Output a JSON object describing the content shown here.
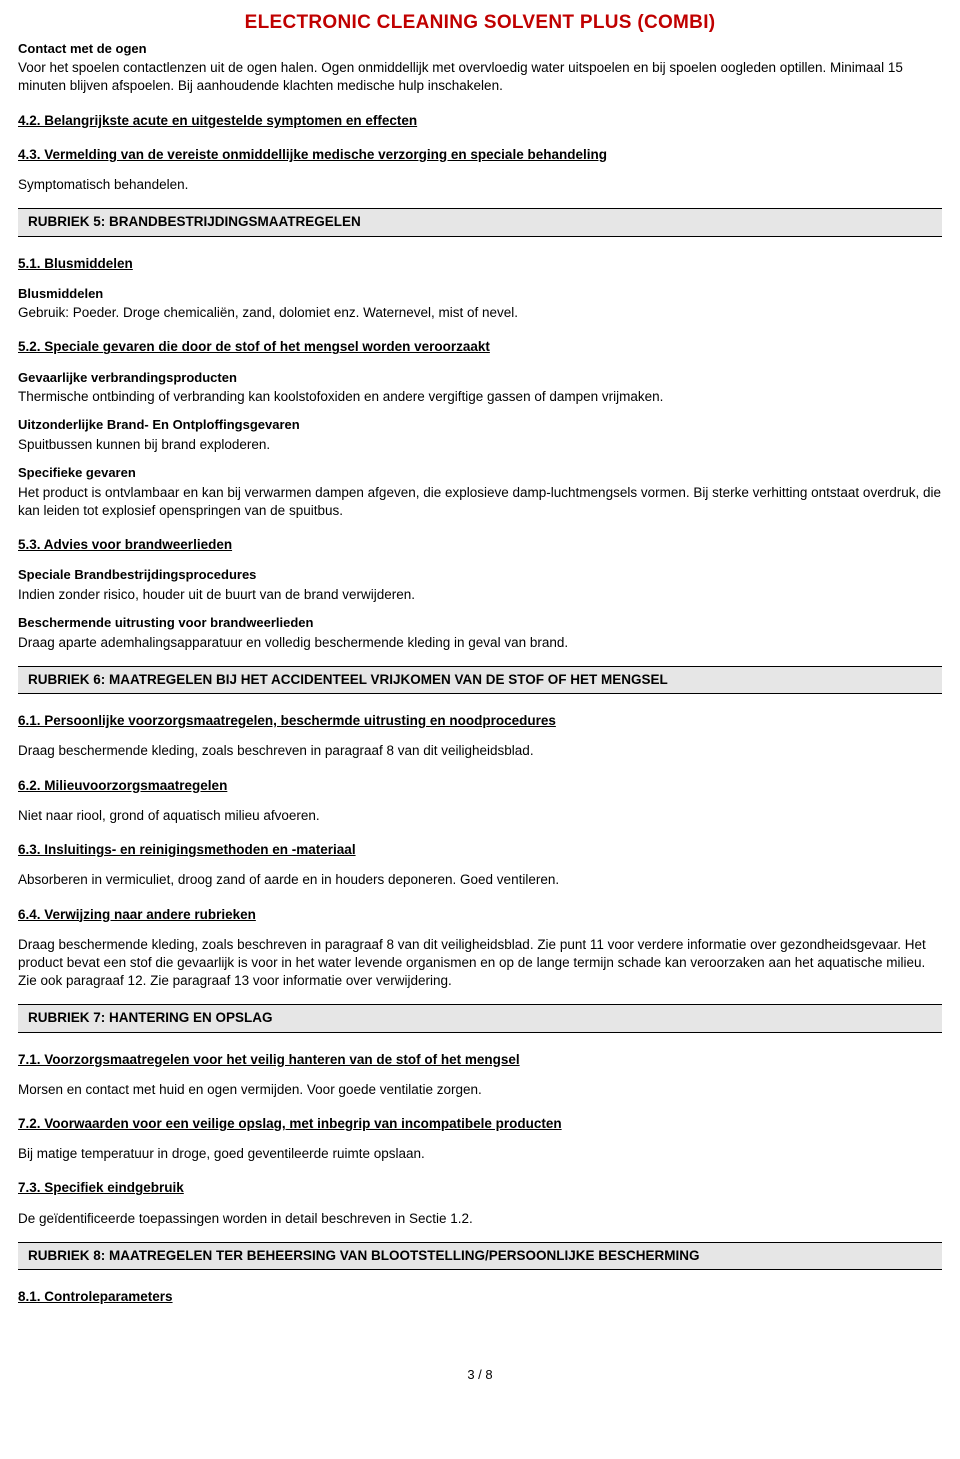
{
  "title": "ELECTRONIC CLEANING SOLVENT PLUS (COMBI)",
  "s_contact_heading": "Contact met de ogen",
  "s_contact_text": "Voor het spoelen contactlenzen uit de ogen halen. Ogen onmiddellijk met overvloedig water uitspoelen en bij spoelen oogleden optillen. Minimaal 15 minuten blijven afspoelen. Bij aanhoudende klachten medische hulp inschakelen.",
  "s4_2": "4.2. Belangrijkste acute en uitgestelde symptomen en effecten",
  "s4_3": "4.3. Vermelding van de vereiste onmiddellijke medische verzorging en speciale behandeling",
  "s4_3_text": "Symptomatisch behandelen.",
  "rubriek5": "RUBRIEK 5: BRANDBESTRIJDINGSMAATREGELEN",
  "s5_1": "5.1. Blusmiddelen",
  "s5_1_h": "Blusmiddelen",
  "s5_1_text": "Gebruik: Poeder. Droge chemicaliën,  zand,  dolomiet enz. Waternevel,  mist of nevel.",
  "s5_2": "5.2. Speciale gevaren die door de stof of het mengsel worden veroorzaakt",
  "s5_2_h1": "Gevaarlijke verbrandingsproducten",
  "s5_2_t1": "Thermische ontbinding of verbranding kan koolstofoxiden en andere vergiftige gassen of dampen vrijmaken.",
  "s5_2_h2": "Uitzonderlijke Brand- En Ontploffingsgevaren",
  "s5_2_t2": "Spuitbussen kunnen bij brand exploderen.",
  "s5_2_h3": "Specifieke gevaren",
  "s5_2_t3": "Het product is ontvlambaar en kan bij verwarmen dampen afgeven,  die explosieve damp-luchtmengsels vormen. Bij sterke verhitting ontstaat overdruk,  die kan leiden tot explosief openspringen van de spuitbus.",
  "s5_3": "5.3. Advies voor brandweerlieden",
  "s5_3_h1": "Speciale Brandbestrijdingsprocedures",
  "s5_3_t1": "Indien zonder risico,  houder uit de buurt van de brand verwijderen.",
  "s5_3_h2": "Beschermende uitrusting voor brandweerlieden",
  "s5_3_t2": "Draag aparte ademhalingsapparatuur en volledig beschermende kleding in geval van brand.",
  "rubriek6": "RUBRIEK 6: MAATREGELEN BIJ HET ACCIDENTEEL VRIJKOMEN VAN DE STOF OF HET MENGSEL",
  "s6_1": "6.1. Persoonlijke voorzorgsmaatregelen, beschermde uitrusting en noodprocedures",
  "s6_1_t": "Draag beschermende kleding,  zoals beschreven in paragraaf 8 van dit veiligheidsblad.",
  "s6_2": "6.2. Milieuvoorzorgsmaatregelen",
  "s6_2_t": "Niet naar riool,  grond of aquatisch milieu afvoeren.",
  "s6_3": "6.3. Insluitings- en reinigingsmethoden en -materiaal",
  "s6_3_t": "Absorberen in vermiculiet,  droog zand of aarde en in houders deponeren. Goed ventileren.",
  "s6_4": "6.4. Verwijzing naar andere rubrieken",
  "s6_4_t": "Draag beschermende kleding,  zoals beschreven in paragraaf 8 van dit veiligheidsblad. Zie punt 11 voor verdere informatie over gezondheidsgevaar. Het product bevat een stof die gevaarlijk is voor in het water levende organismen en op de lange termijn schade kan veroorzaken aan het aquatische milieu. Zie ook paragraaf 12. Zie paragraaf 13 voor informatie over verwijdering.",
  "rubriek7": "RUBRIEK 7: HANTERING EN OPSLAG",
  "s7_1": "7.1. Voorzorgsmaatregelen voor het veilig hanteren van de stof of het mengsel",
  "s7_1_t": "Morsen en contact met huid en ogen vermijden. Voor goede ventilatie zorgen.",
  "s7_2": "7.2. Voorwaarden voor een veilige opslag, met inbegrip van incompatibele producten",
  "s7_2_t": "Bij matige temperatuur in droge,  goed geventileerde ruimte opslaan.",
  "s7_3": "7.3. Specifiek eindgebruik",
  "s7_3_t": "De geïdentificeerde toepassingen worden in detail beschreven in Sectie 1.2.",
  "rubriek8": "RUBRIEK 8: MAATREGELEN TER BEHEERSING VAN BLOOTSTELLING/PERSOONLIJKE BESCHERMING",
  "s8_1": "8.1. Controleparameters",
  "footer": "3 /  8"
}
